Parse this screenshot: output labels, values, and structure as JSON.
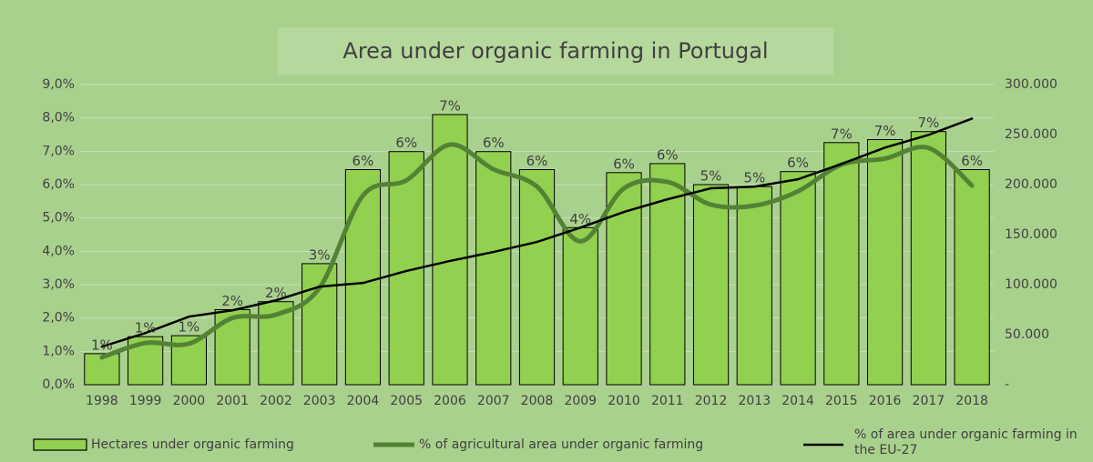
{
  "chart_data": {
    "type": "bar_line",
    "title": "Area under organic farming in Portugal",
    "categories": [
      "1998",
      "1999",
      "2000",
      "2001",
      "2002",
      "2003",
      "2004",
      "2005",
      "2006",
      "2007",
      "2008",
      "2009",
      "2010",
      "2011",
      "2012",
      "2013",
      "2014",
      "2015",
      "2016",
      "2017",
      "2018"
    ],
    "series": [
      {
        "name": "Hectares under organic farming",
        "type": "bar",
        "axis": "y2",
        "color": "#92d050",
        "values": [
          31000,
          48000,
          49000,
          75000,
          83000,
          121000,
          215000,
          233000,
          270000,
          233000,
          215000,
          157000,
          212000,
          221000,
          200000,
          198000,
          213000,
          242000,
          245000,
          253000,
          215000
        ]
      },
      {
        "name": "% of agricultural area under organic farming",
        "type": "line",
        "axis": "y",
        "color": "#548235",
        "values": [
          0.82,
          1.25,
          1.23,
          2.0,
          2.1,
          2.9,
          5.67,
          6.13,
          7.2,
          6.46,
          5.94,
          4.3,
          5.89,
          6.08,
          5.4,
          5.37,
          5.8,
          6.6,
          6.78,
          7.1,
          5.97
        ],
        "value_labels": [
          "1%",
          "1%",
          "1%",
          "2%",
          "2%",
          "3%",
          "6%",
          "6%",
          "7%",
          "6%",
          "6%",
          "4%",
          "6%",
          "6%",
          "5%",
          "5%",
          "6%",
          "7%",
          "7%",
          "7%",
          "6%"
        ]
      },
      {
        "name": "% of area under organic farming in the EU-27",
        "type": "line",
        "axis": "y",
        "color": "#000000",
        "values": [
          1.14,
          1.55,
          2.04,
          2.23,
          2.53,
          2.94,
          3.05,
          3.41,
          3.71,
          3.98,
          4.28,
          4.71,
          5.18,
          5.56,
          5.89,
          5.94,
          6.16,
          6.62,
          7.11,
          7.49,
          7.98
        ]
      }
    ],
    "ylim": [
      0,
      9
    ],
    "yticks": [
      {
        "value": 0,
        "label": "0,0%"
      },
      {
        "value": 1,
        "label": "1,0%"
      },
      {
        "value": 2,
        "label": "2,0%"
      },
      {
        "value": 3,
        "label": "3,0%"
      },
      {
        "value": 4,
        "label": "4,0%"
      },
      {
        "value": 5,
        "label": "5,0%"
      },
      {
        "value": 6,
        "label": "6,0%"
      },
      {
        "value": 7,
        "label": "7,0%"
      },
      {
        "value": 8,
        "label": "8,0%"
      },
      {
        "value": 9,
        "label": "9,0%"
      }
    ],
    "y2lim": [
      0,
      300000
    ],
    "y2ticks": [
      {
        "value": 0,
        "label": "-"
      },
      {
        "value": 50000,
        "label": "50.000"
      },
      {
        "value": 100000,
        "label": "100.000"
      },
      {
        "value": 150000,
        "label": "150.000"
      },
      {
        "value": 200000,
        "label": "200.000"
      },
      {
        "value": 250000,
        "label": "250.000"
      },
      {
        "value": 300000,
        "label": "300.000"
      }
    ],
    "grid": true,
    "legend": "bottom"
  }
}
